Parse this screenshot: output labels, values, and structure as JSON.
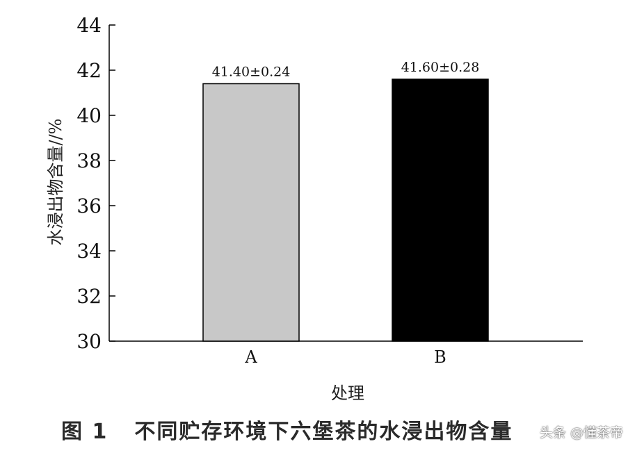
{
  "chart_data": {
    "type": "bar",
    "categories": [
      "A",
      "B"
    ],
    "values": [
      41.4,
      41.6
    ],
    "data_labels": [
      "41.40±0.24",
      "41.60±0.28"
    ],
    "bar_colors": [
      "#c8c8c8",
      "#000000"
    ],
    "ylim": [
      30,
      44
    ],
    "yticks": [
      "30",
      "32",
      "34",
      "36",
      "38",
      "40",
      "42",
      "44"
    ],
    "ylabel": "水浸出物含量//%",
    "xlabel": "处理",
    "grid": false
  },
  "caption": {
    "figure_number": "图 1",
    "text": "不同贮存环境下六堡茶的水浸出物含量"
  },
  "watermark": "头条 @懂茶帝"
}
